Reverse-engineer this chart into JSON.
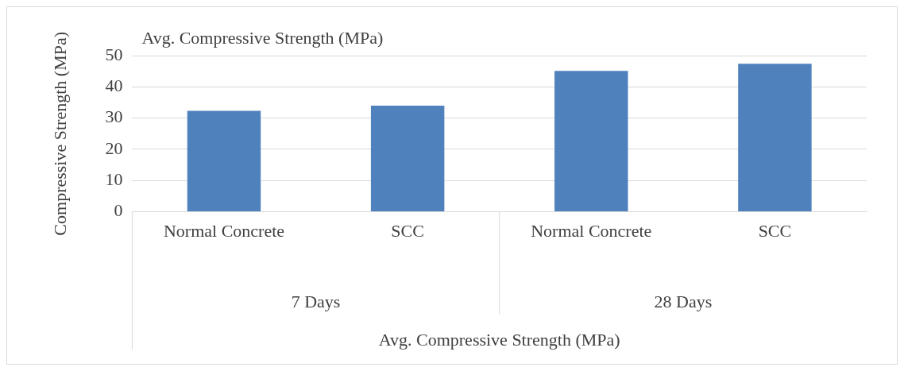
{
  "chart_data": {
    "type": "bar",
    "title": "Avg. Compressive Strength (MPa)",
    "ylabel": "Compressive Strength (MPa)",
    "categories": [
      "Normal Concrete",
      "SCC",
      "Normal Concrete",
      "SCC"
    ],
    "values": [
      32.3,
      34.0,
      45.1,
      47.4
    ],
    "color": "#4f81bd",
    "annotations": [
      "7 Days",
      "28 Days",
      "Avg. Compressive Strength (MPa)"
    ],
    "ylim": [
      0,
      50
    ],
    "yticks": [
      0,
      10,
      20,
      30,
      40,
      50
    ],
    "grid": "y",
    "legend": false
  }
}
